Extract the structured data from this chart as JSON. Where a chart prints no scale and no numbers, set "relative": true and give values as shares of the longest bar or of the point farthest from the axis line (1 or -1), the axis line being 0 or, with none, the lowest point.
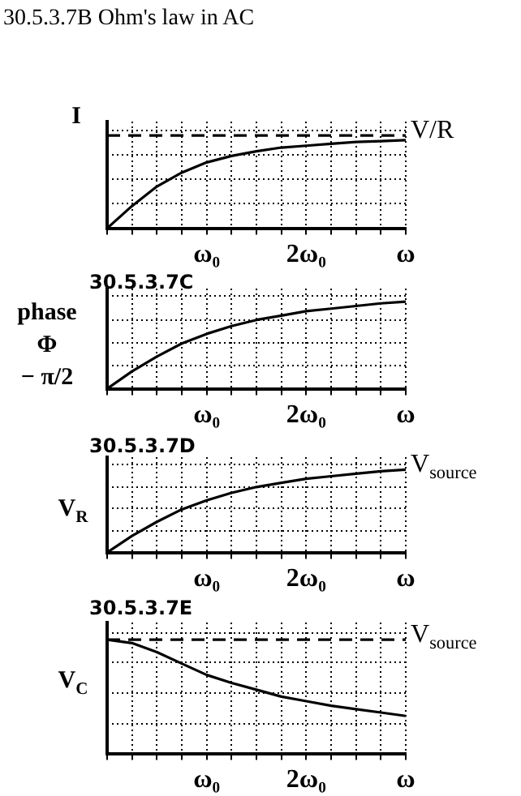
{
  "chart_data": [
    {
      "type": "line",
      "title": "30.5.3.7B Ohm's law in AC",
      "ylabel": "I",
      "relative": true,
      "grid": true,
      "marker": "none",
      "categories": [
        null,
        null,
        null,
        null,
        "ω₀",
        null,
        null,
        null,
        "2ω₀",
        null,
        null,
        null,
        "ω"
      ],
      "series": [
        {
          "color": "#000000",
          "values": [
            0,
            0.24,
            0.45,
            0.6,
            0.71,
            0.78,
            0.83,
            0.87,
            0.89,
            0.91,
            0.93,
            0.94,
            0.95
          ]
        },
        {
          "name": "V/R",
          "color": "#000000",
          "line_style": "dashed",
          "values": [
            1,
            1,
            1,
            1,
            1,
            1,
            1,
            1,
            1,
            1,
            1,
            1,
            1
          ]
        }
      ]
    },
    {
      "type": "line",
      "title": "30.5.3.7C",
      "ylabel": "phase\nΦ\n− π/2",
      "relative": true,
      "grid": true,
      "marker": "none",
      "categories": [
        null,
        null,
        null,
        null,
        "ω₀",
        null,
        null,
        null,
        "2ω₀",
        null,
        null,
        null,
        "ω"
      ],
      "series": [
        {
          "color": "#000000",
          "values": [
            0,
            0.2,
            0.37,
            0.52,
            0.63,
            0.72,
            0.79,
            0.84,
            0.89,
            0.92,
            0.95,
            0.98,
            1
          ]
        }
      ]
    },
    {
      "type": "line",
      "title": "30.5.3.7D",
      "ylabel": "V$_{R}$",
      "relative": true,
      "grid": true,
      "marker": "none",
      "categories": [
        null,
        null,
        null,
        null,
        "ω₀",
        null,
        null,
        null,
        "2ω₀",
        null,
        null,
        null,
        "ω"
      ],
      "series": [
        {
          "name": "V$_{source}$",
          "color": "#000000",
          "values": [
            0,
            0.2,
            0.37,
            0.52,
            0.63,
            0.72,
            0.79,
            0.84,
            0.89,
            0.92,
            0.95,
            0.98,
            1
          ]
        }
      ]
    },
    {
      "type": "line",
      "title": "30.5.3.7E",
      "ylabel": "V$_{C}$",
      "relative": true,
      "grid": true,
      "marker": "none",
      "categories": [
        null,
        null,
        null,
        null,
        "ω₀",
        null,
        null,
        null,
        "2ω₀",
        null,
        null,
        null,
        "ω"
      ],
      "series": [
        {
          "color": "#000000",
          "values": [
            1,
            0.97,
            0.89,
            0.79,
            0.69,
            0.62,
            0.56,
            0.5,
            0.46,
            0.42,
            0.39,
            0.36,
            0.33
          ]
        },
        {
          "name": "V$_{source}$",
          "color": "#000000",
          "line_style": "dashed",
          "values": [
            1,
            1,
            1,
            1,
            1,
            1,
            1,
            1,
            1,
            1,
            1,
            1,
            1
          ]
        }
      ]
    }
  ]
}
